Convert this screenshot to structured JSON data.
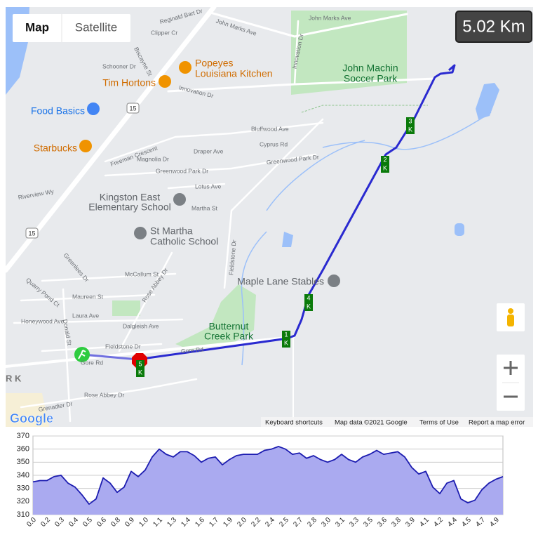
{
  "map": {
    "controls": {
      "map": "Map",
      "satellite": "Satellite"
    },
    "distance": "5.02 Km",
    "places": {
      "popeyes": [
        "Popeyes",
        "Louisiana Kitchen"
      ],
      "tim_hortons": "Tim Hortons",
      "food_basics": "Food Basics",
      "starbucks": "Starbucks",
      "soccer_park": [
        "John Machin",
        "Soccer Park"
      ],
      "kingston_east": [
        "Kingston East",
        "Elementary School"
      ],
      "st_martha": [
        "St Martha",
        "Catholic School"
      ],
      "stables": "Maple Lane Stables",
      "butternut": [
        "Butternut",
        "Creek Park"
      ]
    },
    "streets": [
      "Reginald Bart Dr",
      "Clipper Cr",
      "John Marks Ave",
      "John Marks Ave",
      "Biscayne St",
      "Schooner Dr",
      "Innovation Dr",
      "Innovation Dr",
      "Freeman Crescent",
      "Magnolia Dr",
      "Draper Ave",
      "Greenwood Park Dr",
      "Greenwood Park Dr",
      "Bluffwood Ave",
      "Cyprus Rd",
      "Lotus Ave",
      "Martha St",
      "Riverview Wy",
      "Greenlees Dr",
      "McCallum St",
      "Quarry Pond Ct",
      "Maureen St",
      "Laura Ave",
      "Rose Abbey Dr",
      "Honeywood Ave",
      "Donald St",
      "Dalgleish Ave",
      "Fieldstone Dr",
      "Fieldstone Dr",
      "Gore Rd",
      "Gore Rd",
      "Rose Abbey Dr",
      "Grenadier Dr"
    ],
    "route_shields": [
      "15",
      "15"
    ],
    "km_markers": [
      "1",
      "2",
      "3",
      "4",
      "5"
    ],
    "km_unit": "K",
    "edge_label": "R K",
    "logo": "Google",
    "footer": [
      "Keyboard shortcuts",
      "Map data ©2021 Google",
      "Terms of Use",
      "Report a map error"
    ]
  },
  "chart_data": {
    "type": "area",
    "categories": [
      "0.0",
      null,
      "0.2",
      null,
      "0.3",
      null,
      "0.4",
      null,
      "0.5",
      null,
      "0.6",
      null,
      "0.8",
      null,
      "0.9",
      null,
      "1.0",
      null,
      "1.1",
      null,
      "1.3",
      null,
      "1.4",
      null,
      "1.6",
      null,
      "1.7",
      null,
      "1.9",
      null,
      "2.0",
      null,
      "2.2",
      null,
      "2.4",
      null,
      "2.5",
      null,
      "2.7",
      null,
      "2.8",
      null,
      "3.0",
      null,
      "3.1",
      null,
      "3.3",
      null,
      "3.5",
      null,
      "3.6",
      null,
      "3.8",
      null,
      "3.9",
      null,
      "4.1",
      null,
      "4.2",
      null,
      "4.4",
      null,
      "4.5",
      null,
      "4.7",
      null,
      "4.9",
      null
    ],
    "values": [
      335,
      336,
      336,
      339,
      340,
      334,
      331,
      325,
      318,
      322,
      338,
      334,
      327,
      331,
      343,
      339,
      344,
      354,
      360,
      356,
      354,
      358,
      358,
      355,
      350,
      353,
      354,
      348,
      352,
      355,
      356,
      356,
      356,
      359,
      360,
      362,
      360,
      356,
      357,
      353,
      355,
      352,
      350,
      352,
      356,
      352,
      350,
      354,
      356,
      359,
      356,
      357,
      358,
      354,
      346,
      341,
      343,
      331,
      326,
      334,
      336,
      322,
      319,
      321,
      329,
      334,
      337,
      339
    ],
    "ylim": [
      310,
      370
    ],
    "yticks": [
      310,
      320,
      330,
      340,
      350,
      360,
      370
    ],
    "color": "#1c1cb0",
    "fill": "#aaaaf0",
    "grid": true
  }
}
